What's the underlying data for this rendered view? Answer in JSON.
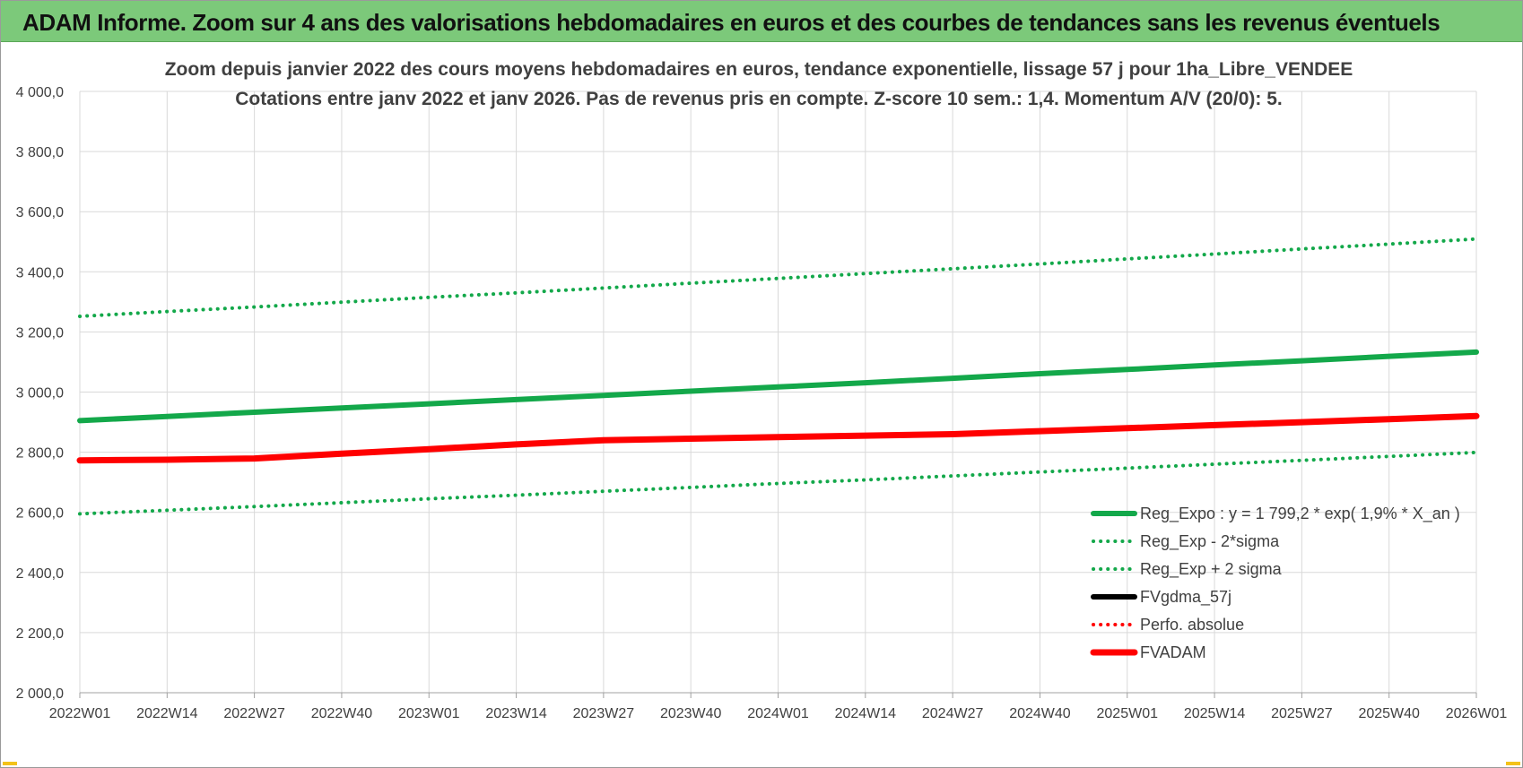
{
  "banner": {
    "title": "ADAM Informe. Zoom sur 4 ans des valorisations hebdomadaires en euros et des courbes de tendances sans les revenus éventuels"
  },
  "colors": {
    "banner_bg": "#7cc97a",
    "green": "#13a84a",
    "red": "#ff0000",
    "black": "#000000",
    "grid": "#d9d9d9"
  },
  "chart_data": {
    "type": "line",
    "title": "Zoom depuis janvier 2022 des cours moyens hebdomadaires en euros, tendance exponentielle, lissage 57 j pour 1ha_Libre_VENDEE",
    "subtitle": "Cotations entre janv 2022 et janv 2026. Pas de revenus pris en compte. Z-score 10 sem.: 1,4. Momentum A/V (20/0): 5.",
    "xlabel": "",
    "ylabel": "",
    "x_ticks": [
      "2022W01",
      "2022W14",
      "2022W27",
      "2022W40",
      "2023W01",
      "2023W14",
      "2023W27",
      "2023W40",
      "2024W01",
      "2024W14",
      "2024W27",
      "2024W40",
      "2025W01",
      "2025W14",
      "2025W27",
      "2025W40",
      "2026W01"
    ],
    "y_ticks": [
      "4 000,0",
      "3 800,0",
      "3 600,0",
      "3 400,0",
      "3 200,0",
      "3 000,0",
      "2 800,0",
      "2 600,0",
      "2 400,0",
      "2 200,0",
      "2 000,0"
    ],
    "ylim": [
      2000,
      4000
    ],
    "grid": true,
    "legend_position": "bottom-right",
    "series": [
      {
        "name": "Reg_Expo : y = 1 799,2 * exp( 1,9% *  X_an )",
        "style": "solid",
        "color": "#13a84a",
        "x": [
          "2022W01",
          "2022W14",
          "2022W27",
          "2022W40",
          "2023W01",
          "2023W14",
          "2023W27",
          "2023W40",
          "2024W01",
          "2024W14",
          "2024W27",
          "2024W40",
          "2025W01",
          "2025W14",
          "2025W27",
          "2025W40",
          "2026W01"
        ],
        "values": [
          2905,
          2919,
          2933,
          2947,
          2961,
          2975,
          2989,
          3003,
          3017,
          3031,
          3046,
          3061,
          3075,
          3090,
          3104,
          3119,
          3133
        ]
      },
      {
        "name": "Reg_Exp - 2*sigma",
        "style": "dotted",
        "color": "#13a84a",
        "x": [
          "2022W01",
          "2022W14",
          "2022W27",
          "2022W40",
          "2023W01",
          "2023W14",
          "2023W27",
          "2023W40",
          "2024W01",
          "2024W14",
          "2024W27",
          "2024W40",
          "2025W01",
          "2025W14",
          "2025W27",
          "2025W40",
          "2026W01"
        ],
        "values": [
          2595,
          2607,
          2619,
          2632,
          2645,
          2657,
          2670,
          2683,
          2696,
          2708,
          2721,
          2734,
          2747,
          2760,
          2773,
          2786,
          2799
        ]
      },
      {
        "name": "Reg_Exp + 2 sigma",
        "style": "dotted",
        "color": "#13a84a",
        "x": [
          "2022W01",
          "2022W14",
          "2022W27",
          "2022W40",
          "2023W01",
          "2023W14",
          "2023W27",
          "2023W40",
          "2024W01",
          "2024W14",
          "2024W27",
          "2024W40",
          "2025W01",
          "2025W14",
          "2025W27",
          "2025W40",
          "2026W01"
        ],
        "values": [
          3252,
          3268,
          3283,
          3299,
          3315,
          3330,
          3346,
          3362,
          3378,
          3394,
          3410,
          3426,
          3443,
          3459,
          3476,
          3492,
          3509
        ]
      },
      {
        "name": "FVgdma_57j",
        "style": "solid",
        "color": "#000000",
        "x": [],
        "values": []
      },
      {
        "name": "Perfo. absolue",
        "style": "dotted",
        "color": "#ff0000",
        "x": [],
        "values": []
      },
      {
        "name": "FVADAM",
        "style": "solid-thick",
        "color": "#ff0000",
        "x": [
          "2022W01",
          "2022W14",
          "2022W27",
          "2022W40",
          "2023W01",
          "2023W14",
          "2023W27",
          "2023W40",
          "2024W01",
          "2024W14",
          "2024W27",
          "2024W40",
          "2025W01",
          "2025W14",
          "2025W27",
          "2025W40",
          "2026W01"
        ],
        "values": [
          2773,
          2775,
          2779,
          2795,
          2810,
          2826,
          2840,
          2845,
          2850,
          2855,
          2860,
          2870,
          2880,
          2890,
          2900,
          2910,
          2920
        ]
      }
    ]
  }
}
